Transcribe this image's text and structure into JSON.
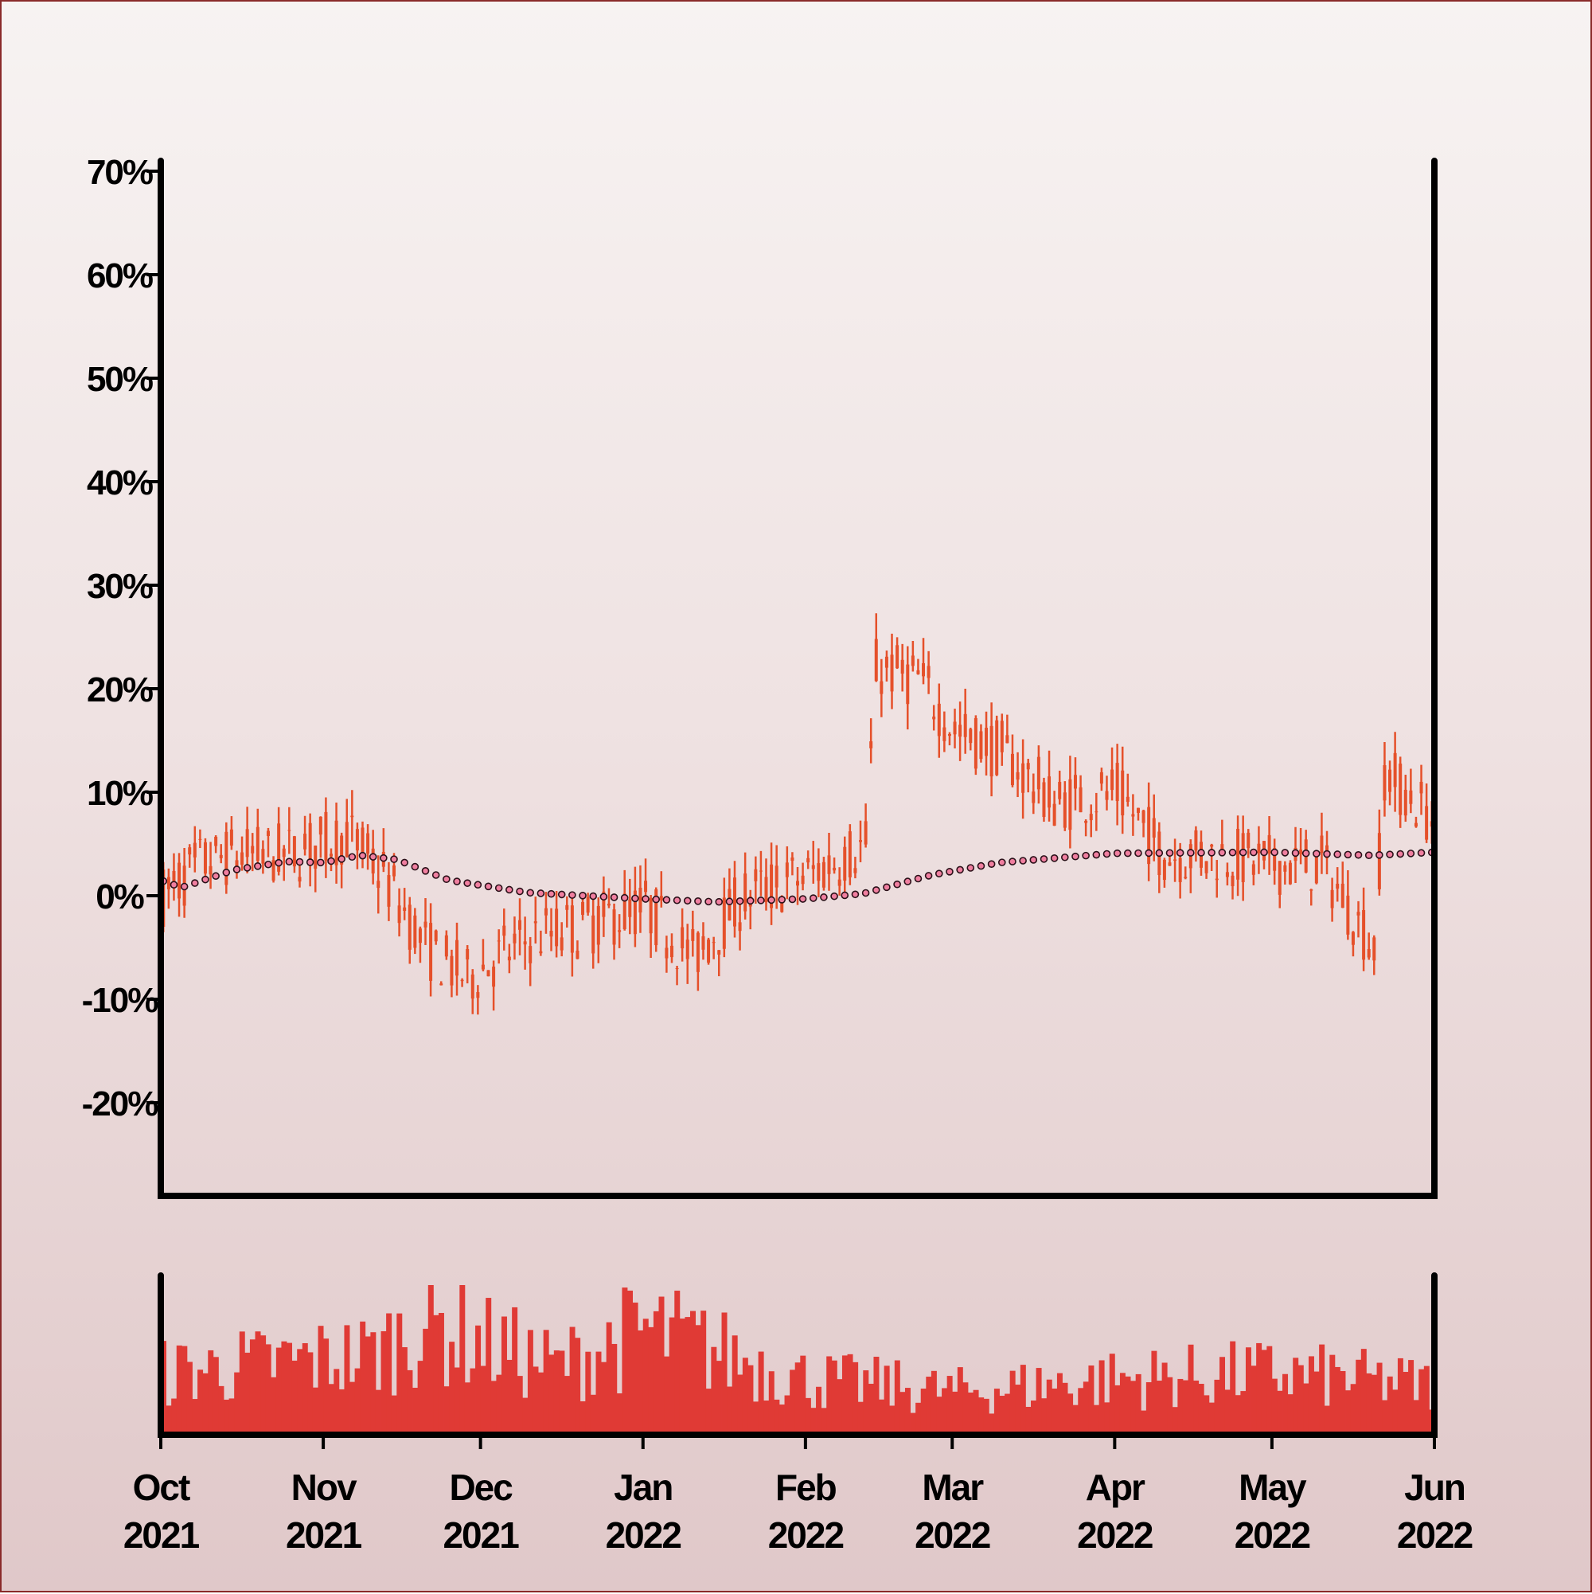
{
  "chart_data": [
    {
      "type": "candlestick",
      "x_axis": "date",
      "x_range": [
        "2021-10-01",
        "2022-06-01"
      ],
      "y_unit": "%",
      "ylim": [
        -29,
        71
      ],
      "yticks": [
        -20,
        -10,
        0,
        10,
        20,
        30,
        40,
        50,
        60,
        70
      ],
      "ytick_labels": [
        "-20%",
        "-10%",
        "0%",
        "10%",
        "20%",
        "30%",
        "40%",
        "50%",
        "60%",
        "70%"
      ],
      "xticks": [
        {
          "date": "2021-10-01",
          "month": "Oct",
          "year": "2021"
        },
        {
          "date": "2021-11-01",
          "month": "Nov",
          "year": "2021"
        },
        {
          "date": "2021-12-01",
          "month": "Dec",
          "year": "2021"
        },
        {
          "date": "2022-01-01",
          "month": "Jan",
          "year": "2022"
        },
        {
          "date": "2022-02-01",
          "month": "Feb",
          "year": "2022"
        },
        {
          "date": "2022-03-01",
          "month": "Mar",
          "year": "2022"
        },
        {
          "date": "2022-04-01",
          "month": "Apr",
          "year": "2022"
        },
        {
          "date": "2022-05-01",
          "month": "May",
          "year": "2022"
        },
        {
          "date": "2022-06-01",
          "month": "Jun",
          "year": "2022"
        }
      ],
      "ohlc_level_trend": [
        {
          "date": "2021-10-01",
          "close": 0
        },
        {
          "date": "2021-10-08",
          "close": 3
        },
        {
          "date": "2021-10-15",
          "close": 4
        },
        {
          "date": "2021-10-25",
          "close": 4
        },
        {
          "date": "2021-11-05",
          "close": 6
        },
        {
          "date": "2021-11-12",
          "close": 2
        },
        {
          "date": "2021-11-20",
          "close": -5
        },
        {
          "date": "2021-11-28",
          "close": -8
        },
        {
          "date": "2021-12-10",
          "close": -4
        },
        {
          "date": "2021-12-20",
          "close": -3
        },
        {
          "date": "2022-01-01",
          "close": -1
        },
        {
          "date": "2022-01-10",
          "close": -6
        },
        {
          "date": "2022-01-20",
          "close": 0
        },
        {
          "date": "2022-02-01",
          "close": 2
        },
        {
          "date": "2022-02-12",
          "close": 5
        },
        {
          "date": "2022-02-14",
          "close": 22
        },
        {
          "date": "2022-02-22",
          "close": 21
        },
        {
          "date": "2022-03-01",
          "close": 16
        },
        {
          "date": "2022-03-10",
          "close": 14
        },
        {
          "date": "2022-03-20",
          "close": 9
        },
        {
          "date": "2022-04-01",
          "close": 10
        },
        {
          "date": "2022-04-10",
          "close": 4
        },
        {
          "date": "2022-04-20",
          "close": 4
        },
        {
          "date": "2022-05-01",
          "close": 3
        },
        {
          "date": "2022-05-10",
          "close": 3
        },
        {
          "date": "2022-05-20",
          "close": -5
        },
        {
          "date": "2022-05-22",
          "close": 12
        },
        {
          "date": "2022-06-01",
          "close": 7
        }
      ],
      "moving_average": [
        {
          "date": "2021-10-01",
          "value": 1.5
        },
        {
          "date": "2021-10-05",
          "value": 0.8
        },
        {
          "date": "2021-10-15",
          "value": 2.5
        },
        {
          "date": "2021-10-25",
          "value": 3.3
        },
        {
          "date": "2021-11-01",
          "value": 3.2
        },
        {
          "date": "2021-11-08",
          "value": 3.9
        },
        {
          "date": "2021-11-15",
          "value": 3.5
        },
        {
          "date": "2021-11-25",
          "value": 1.5
        },
        {
          "date": "2021-12-10",
          "value": 0.3
        },
        {
          "date": "2022-01-01",
          "value": -0.3
        },
        {
          "date": "2022-01-15",
          "value": -0.6
        },
        {
          "date": "2022-02-01",
          "value": -0.3
        },
        {
          "date": "2022-02-12",
          "value": 0.2
        },
        {
          "date": "2022-02-25",
          "value": 2.0
        },
        {
          "date": "2022-03-10",
          "value": 3.2
        },
        {
          "date": "2022-04-01",
          "value": 4.1
        },
        {
          "date": "2022-05-01",
          "value": 4.2
        },
        {
          "date": "2022-05-20",
          "value": 3.9
        },
        {
          "date": "2022-06-01",
          "value": 4.2
        }
      ],
      "colors": {
        "candle": "#e5502a",
        "moving_average_fill": "#f07fa0",
        "moving_average_edge": "#2a1018",
        "axes": "#000000"
      },
      "grid": false,
      "legend": "none"
    },
    {
      "type": "bar",
      "role": "volume",
      "x_range": [
        "2021-10-01",
        "2022-06-01"
      ],
      "color": "#e03a35",
      "relative_level_trend": [
        {
          "date": "2021-10-01",
          "value": 0.5
        },
        {
          "date": "2021-11-10",
          "value": 0.65
        },
        {
          "date": "2021-11-20",
          "value": 0.9
        },
        {
          "date": "2021-12-15",
          "value": 0.55
        },
        {
          "date": "2022-01-01",
          "value": 0.85
        },
        {
          "date": "2022-02-01",
          "value": 0.45
        },
        {
          "date": "2022-03-01",
          "value": 0.35
        },
        {
          "date": "2022-04-01",
          "value": 0.45
        },
        {
          "date": "2022-05-01",
          "value": 0.5
        },
        {
          "date": "2022-06-01",
          "value": 0.4
        }
      ]
    }
  ]
}
